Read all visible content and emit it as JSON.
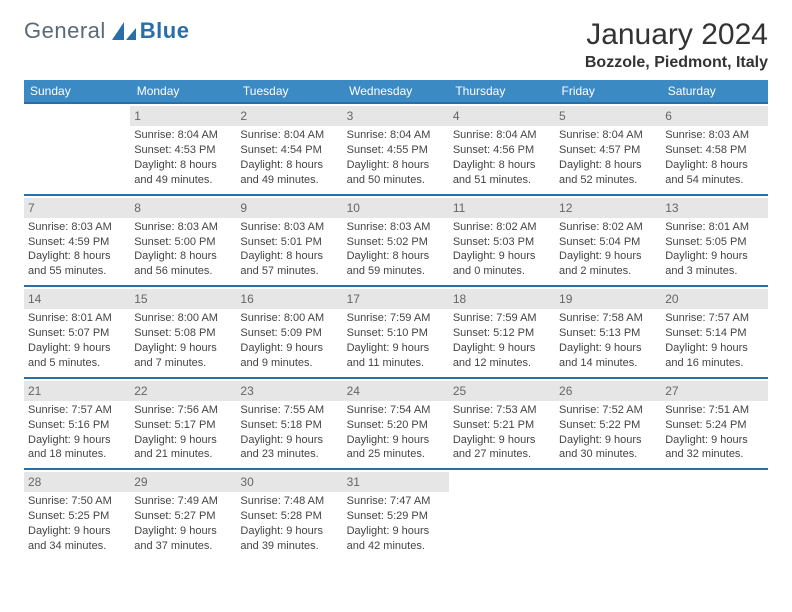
{
  "logo": {
    "text1": "General",
    "text2": "Blue",
    "color1": "#5a6a78",
    "color2": "#2a6ea8"
  },
  "header": {
    "month": "January 2024",
    "location": "Bozzole, Piedmont, Italy"
  },
  "style": {
    "header_bg": "#3b8ac4",
    "header_fg": "#ffffff",
    "week_border": "#2a6ea8",
    "daynum_bg": "#e6e6e6",
    "daynum_fg": "#666666",
    "body_fontsize": 11,
    "header_fontsize": 12,
    "title_fontsize": 30,
    "location_fontsize": 16
  },
  "weekdays": [
    "Sunday",
    "Monday",
    "Tuesday",
    "Wednesday",
    "Thursday",
    "Friday",
    "Saturday"
  ],
  "weeks": [
    [
      null,
      {
        "n": "1",
        "sr": "8:04 AM",
        "ss": "4:53 PM",
        "dl": "8 hours and 49 minutes."
      },
      {
        "n": "2",
        "sr": "8:04 AM",
        "ss": "4:54 PM",
        "dl": "8 hours and 49 minutes."
      },
      {
        "n": "3",
        "sr": "8:04 AM",
        "ss": "4:55 PM",
        "dl": "8 hours and 50 minutes."
      },
      {
        "n": "4",
        "sr": "8:04 AM",
        "ss": "4:56 PM",
        "dl": "8 hours and 51 minutes."
      },
      {
        "n": "5",
        "sr": "8:04 AM",
        "ss": "4:57 PM",
        "dl": "8 hours and 52 minutes."
      },
      {
        "n": "6",
        "sr": "8:03 AM",
        "ss": "4:58 PM",
        "dl": "8 hours and 54 minutes."
      }
    ],
    [
      {
        "n": "7",
        "sr": "8:03 AM",
        "ss": "4:59 PM",
        "dl": "8 hours and 55 minutes."
      },
      {
        "n": "8",
        "sr": "8:03 AM",
        "ss": "5:00 PM",
        "dl": "8 hours and 56 minutes."
      },
      {
        "n": "9",
        "sr": "8:03 AM",
        "ss": "5:01 PM",
        "dl": "8 hours and 57 minutes."
      },
      {
        "n": "10",
        "sr": "8:03 AM",
        "ss": "5:02 PM",
        "dl": "8 hours and 59 minutes."
      },
      {
        "n": "11",
        "sr": "8:02 AM",
        "ss": "5:03 PM",
        "dl": "9 hours and 0 minutes."
      },
      {
        "n": "12",
        "sr": "8:02 AM",
        "ss": "5:04 PM",
        "dl": "9 hours and 2 minutes."
      },
      {
        "n": "13",
        "sr": "8:01 AM",
        "ss": "5:05 PM",
        "dl": "9 hours and 3 minutes."
      }
    ],
    [
      {
        "n": "14",
        "sr": "8:01 AM",
        "ss": "5:07 PM",
        "dl": "9 hours and 5 minutes."
      },
      {
        "n": "15",
        "sr": "8:00 AM",
        "ss": "5:08 PM",
        "dl": "9 hours and 7 minutes."
      },
      {
        "n": "16",
        "sr": "8:00 AM",
        "ss": "5:09 PM",
        "dl": "9 hours and 9 minutes."
      },
      {
        "n": "17",
        "sr": "7:59 AM",
        "ss": "5:10 PM",
        "dl": "9 hours and 11 minutes."
      },
      {
        "n": "18",
        "sr": "7:59 AM",
        "ss": "5:12 PM",
        "dl": "9 hours and 12 minutes."
      },
      {
        "n": "19",
        "sr": "7:58 AM",
        "ss": "5:13 PM",
        "dl": "9 hours and 14 minutes."
      },
      {
        "n": "20",
        "sr": "7:57 AM",
        "ss": "5:14 PM",
        "dl": "9 hours and 16 minutes."
      }
    ],
    [
      {
        "n": "21",
        "sr": "7:57 AM",
        "ss": "5:16 PM",
        "dl": "9 hours and 18 minutes."
      },
      {
        "n": "22",
        "sr": "7:56 AM",
        "ss": "5:17 PM",
        "dl": "9 hours and 21 minutes."
      },
      {
        "n": "23",
        "sr": "7:55 AM",
        "ss": "5:18 PM",
        "dl": "9 hours and 23 minutes."
      },
      {
        "n": "24",
        "sr": "7:54 AM",
        "ss": "5:20 PM",
        "dl": "9 hours and 25 minutes."
      },
      {
        "n": "25",
        "sr": "7:53 AM",
        "ss": "5:21 PM",
        "dl": "9 hours and 27 minutes."
      },
      {
        "n": "26",
        "sr": "7:52 AM",
        "ss": "5:22 PM",
        "dl": "9 hours and 30 minutes."
      },
      {
        "n": "27",
        "sr": "7:51 AM",
        "ss": "5:24 PM",
        "dl": "9 hours and 32 minutes."
      }
    ],
    [
      {
        "n": "28",
        "sr": "7:50 AM",
        "ss": "5:25 PM",
        "dl": "9 hours and 34 minutes."
      },
      {
        "n": "29",
        "sr": "7:49 AM",
        "ss": "5:27 PM",
        "dl": "9 hours and 37 minutes."
      },
      {
        "n": "30",
        "sr": "7:48 AM",
        "ss": "5:28 PM",
        "dl": "9 hours and 39 minutes."
      },
      {
        "n": "31",
        "sr": "7:47 AM",
        "ss": "5:29 PM",
        "dl": "9 hours and 42 minutes."
      },
      null,
      null,
      null
    ]
  ],
  "labels": {
    "sunrise": "Sunrise:",
    "sunset": "Sunset:",
    "daylight": "Daylight:"
  }
}
